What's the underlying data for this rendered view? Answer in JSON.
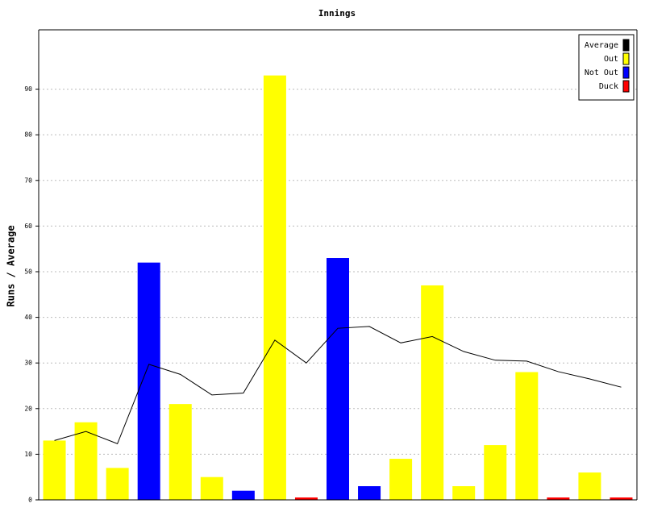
{
  "chart_data": {
    "type": "bar",
    "title": "Innings",
    "y_label": "Runs / Average",
    "categories": [
      null,
      null,
      null,
      null,
      null,
      null,
      null,
      null,
      null,
      null,
      null,
      null,
      null,
      null,
      null,
      null,
      null,
      null,
      null
    ],
    "series": [
      {
        "name": "Average",
        "color": "#000000",
        "type": "line",
        "values": [
          13,
          15,
          12.3,
          29.7,
          27.5,
          23,
          23.4,
          35,
          30,
          37.6,
          38,
          34.4,
          35.8,
          32.5,
          30.6,
          30.4,
          28.1,
          26.5,
          24.7
        ]
      },
      {
        "name": "Out",
        "color": "#ffff00",
        "type": "bar",
        "values": [
          13,
          17,
          7,
          null,
          21,
          5,
          null,
          93,
          null,
          null,
          null,
          9,
          47,
          3,
          12,
          28,
          null,
          6,
          null
        ]
      },
      {
        "name": "Not Out",
        "color": "#0000ff",
        "type": "bar",
        "values": [
          null,
          null,
          null,
          52,
          null,
          null,
          2,
          null,
          null,
          53,
          3,
          null,
          null,
          null,
          null,
          null,
          null,
          null,
          null
        ]
      },
      {
        "name": "Duck",
        "color": "#ff0000",
        "type": "bar",
        "values": [
          null,
          null,
          null,
          null,
          null,
          null,
          null,
          null,
          0,
          null,
          null,
          null,
          null,
          null,
          null,
          null,
          0,
          null,
          0
        ]
      }
    ],
    "ylim": [
      0,
      103
    ],
    "yticks": [
      0,
      10,
      20,
      30,
      40,
      50,
      60,
      70,
      80,
      90
    ],
    "grid": true,
    "legend": "top-right"
  }
}
